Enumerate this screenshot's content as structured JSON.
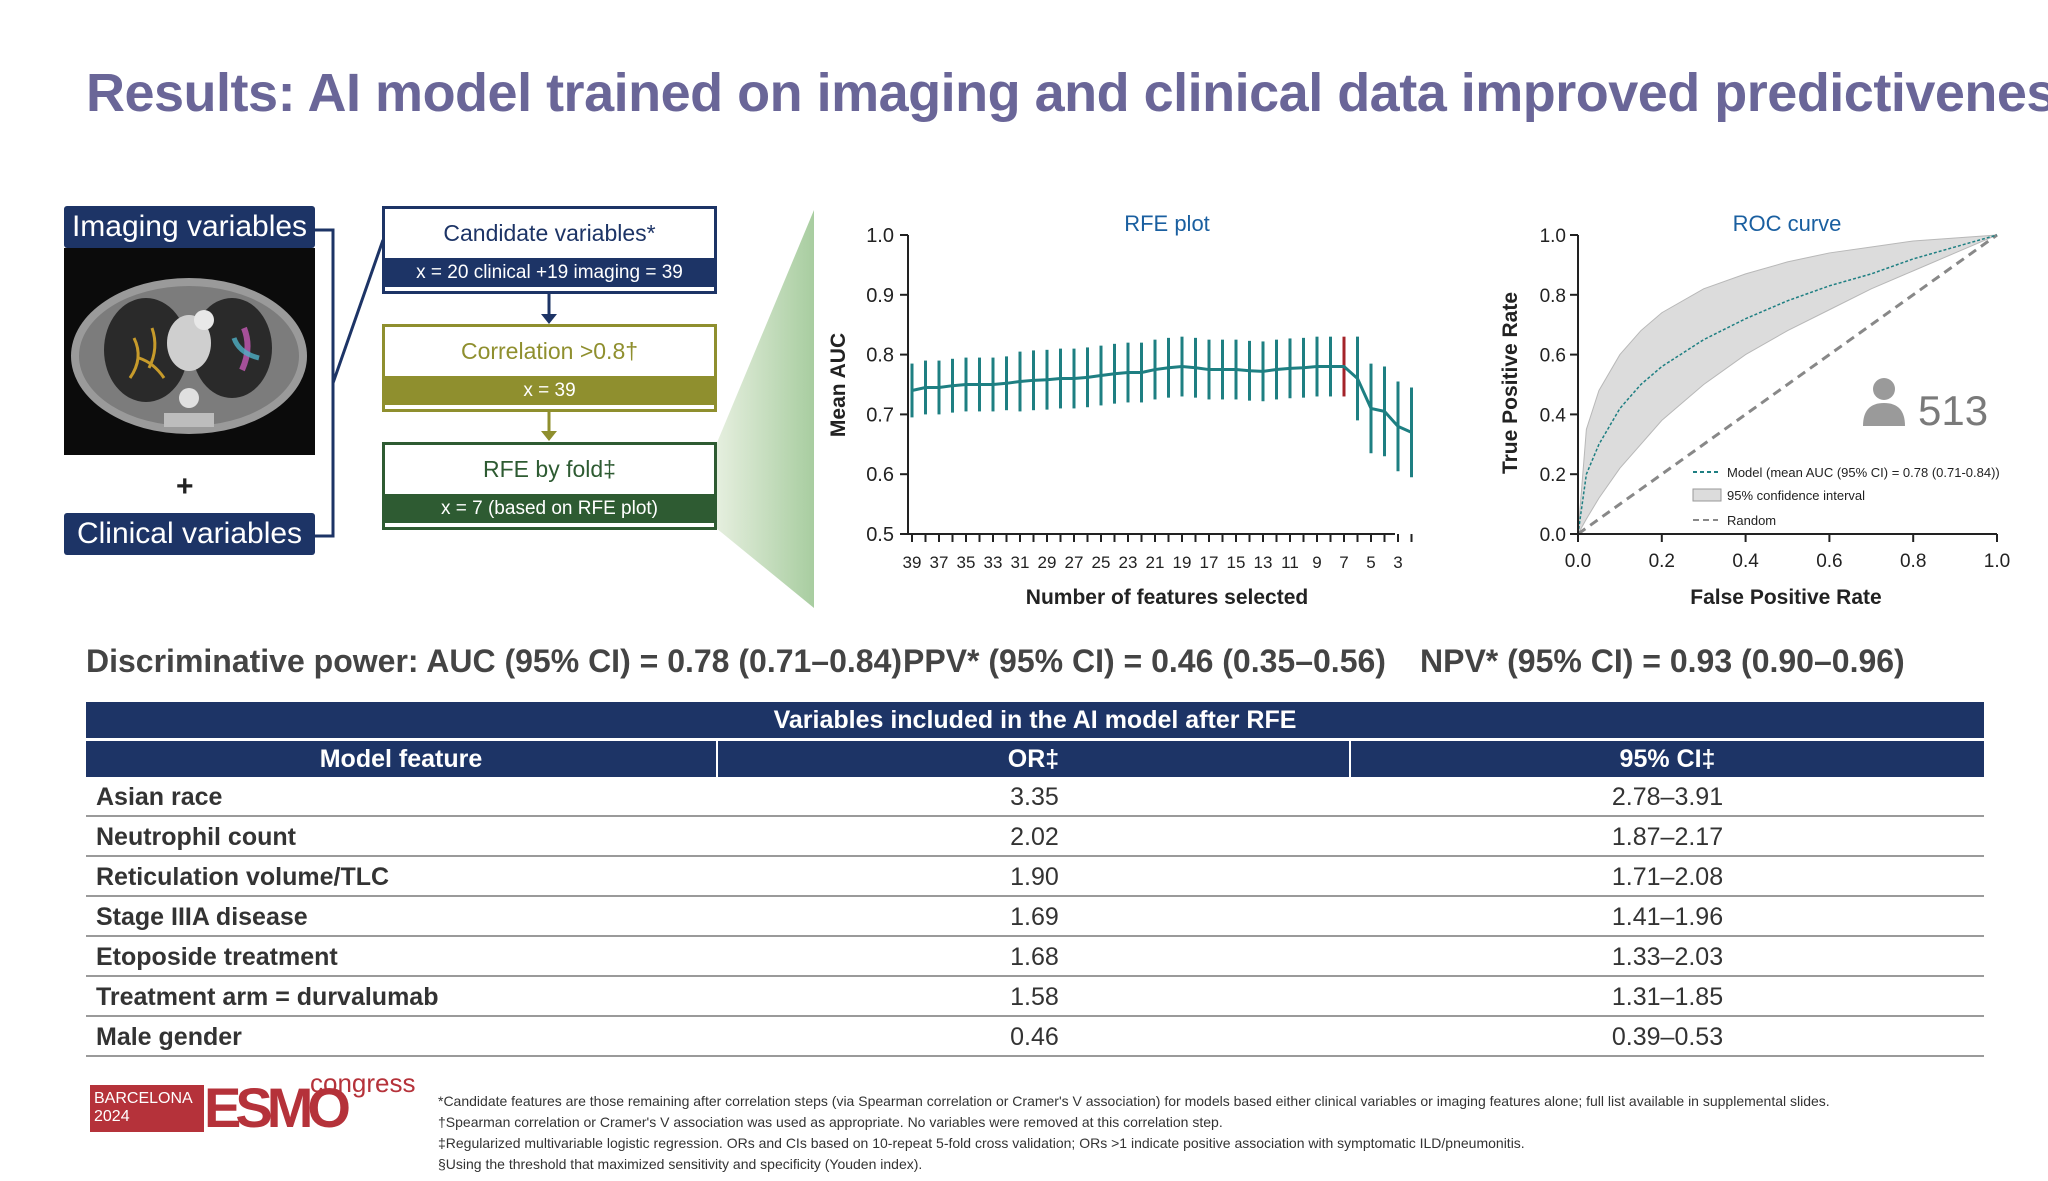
{
  "title": "Results: AI model trained on imaging and clinical data improved predictiveness",
  "flow": {
    "imaging_label": "Imaging variables",
    "clinical_label": "Clinical variables",
    "plus": "+",
    "boxes": [
      {
        "top": "Candidate variables*",
        "bottom": "x = 20 clinical +19 imaging = 39",
        "color": "#1d3466"
      },
      {
        "top": "Correlation >0.8†",
        "bottom": "x = 39",
        "color": "#8f8f2e"
      },
      {
        "top": "RFE by fold‡",
        "bottom": "x = 7 (based on RFE plot)",
        "color": "#2e5b32"
      }
    ]
  },
  "rfe_chart": {
    "title": "RFE plot",
    "xlabel": "Number of features selected",
    "ylabel": "Mean AUC",
    "y_ticks": [
      "0.5",
      "0.6",
      "0.7",
      "0.8",
      "0.9",
      "1.0"
    ],
    "x_ticks": [
      "39",
      "37",
      "35",
      "33",
      "31",
      "29",
      "27",
      "25",
      "23",
      "21",
      "19",
      "17",
      "15",
      "13",
      "11",
      "9",
      "7",
      "5",
      "3"
    ]
  },
  "roc_chart": {
    "title": "ROC curve",
    "xlabel": "False Positive Rate",
    "ylabel": "True Positive Rate",
    "ticks": [
      "0.0",
      "0.2",
      "0.4",
      "0.6",
      "0.8",
      "1.0"
    ],
    "count": "513",
    "legend": [
      "Model (mean AUC (95% CI) = 0.78 (0.71-0.84))",
      "95% confidence interval",
      "Random"
    ]
  },
  "metrics": {
    "auc": "Discriminative power: AUC (95% CI) = 0.78 (0.71–0.84)",
    "ppv": "PPV* (95% CI) = 0.46 (0.35–0.56)",
    "npv": "NPV* (95% CI) = 0.93 (0.90–0.96)"
  },
  "table": {
    "title": "Variables included in the AI model after RFE",
    "headers": [
      "Model feature",
      "OR‡",
      "95% CI‡"
    ],
    "rows": [
      [
        "Asian race",
        "3.35",
        "2.78–3.91"
      ],
      [
        "Neutrophil count",
        "2.02",
        "1.87–2.17"
      ],
      [
        "Reticulation volume/TLC",
        "1.90",
        "1.71–2.08"
      ],
      [
        "Stage IIIA disease",
        "1.69",
        "1.41–1.96"
      ],
      [
        "Etoposide treatment",
        "1.68",
        "1.33–2.03"
      ],
      [
        "Treatment arm = durvalumab",
        "1.58",
        "1.31–1.85"
      ],
      [
        "Male gender",
        "0.46",
        "0.39–0.53"
      ]
    ]
  },
  "logo": {
    "barcelona": "BARCELONA",
    "year": "2024",
    "esmo": "ESMO",
    "congress": "congress"
  },
  "footnotes": [
    "*Candidate features are those remaining after correlation steps (via Spearman correlation or Cramer's V association) for models based either clinical variables or imaging features alone; full list available in supplemental slides.",
    "†Spearman correlation or Cramer's V association was used as appropriate. No variables were removed at this correlation step.",
    "‡Regularized multivariable logistic regression. ORs and CIs based on 10-repeat 5-fold cross validation; ORs >1 indicate positive association with symptomatic ILD/pneumonitis.",
    "§Using the threshold that maximized sensitivity and specificity (Youden index)."
  ],
  "chart_data": [
    {
      "type": "line",
      "title": "RFE plot",
      "xlabel": "Number of features selected",
      "ylabel": "Mean AUC",
      "ylim": [
        0.5,
        1.0
      ],
      "x": [
        39,
        38,
        37,
        36,
        35,
        34,
        33,
        32,
        31,
        30,
        29,
        28,
        27,
        26,
        25,
        24,
        23,
        22,
        21,
        20,
        19,
        18,
        17,
        16,
        15,
        14,
        13,
        12,
        11,
        10,
        9,
        8,
        7,
        6,
        5,
        4,
        3,
        2
      ],
      "y": [
        0.74,
        0.745,
        0.745,
        0.748,
        0.75,
        0.75,
        0.75,
        0.752,
        0.755,
        0.757,
        0.758,
        0.76,
        0.76,
        0.762,
        0.765,
        0.768,
        0.77,
        0.77,
        0.775,
        0.778,
        0.78,
        0.778,
        0.775,
        0.775,
        0.775,
        0.773,
        0.772,
        0.775,
        0.777,
        0.778,
        0.78,
        0.78,
        0.78,
        0.76,
        0.71,
        0.705,
        0.68,
        0.67
      ],
      "err": [
        0.045,
        0.045,
        0.045,
        0.045,
        0.045,
        0.045,
        0.045,
        0.045,
        0.05,
        0.05,
        0.05,
        0.05,
        0.05,
        0.05,
        0.05,
        0.05,
        0.05,
        0.05,
        0.05,
        0.05,
        0.05,
        0.05,
        0.05,
        0.05,
        0.05,
        0.05,
        0.05,
        0.05,
        0.05,
        0.05,
        0.05,
        0.05,
        0.05,
        0.07,
        0.075,
        0.075,
        0.075,
        0.075
      ],
      "highlight_x": 7,
      "highlight_color": "#a4232a",
      "line_color": "#1e7f82"
    },
    {
      "type": "line",
      "title": "ROC curve",
      "xlabel": "False Positive Rate",
      "ylabel": "True Positive Rate",
      "xlim": [
        0,
        1
      ],
      "ylim": [
        0,
        1
      ],
      "series": [
        {
          "name": "Model (mean AUC (95% CI) = 0.78 (0.71-0.84))",
          "x": [
            0,
            0.02,
            0.05,
            0.1,
            0.15,
            0.2,
            0.3,
            0.4,
            0.5,
            0.6,
            0.7,
            0.8,
            0.9,
            1.0
          ],
          "y": [
            0,
            0.2,
            0.3,
            0.42,
            0.5,
            0.56,
            0.65,
            0.72,
            0.78,
            0.83,
            0.87,
            0.92,
            0.96,
            1.0
          ],
          "lower": [
            0,
            0.05,
            0.12,
            0.22,
            0.3,
            0.38,
            0.5,
            0.6,
            0.68,
            0.75,
            0.82,
            0.88,
            0.94,
            1.0
          ],
          "upper": [
            0,
            0.35,
            0.48,
            0.6,
            0.68,
            0.74,
            0.82,
            0.87,
            0.91,
            0.94,
            0.96,
            0.98,
            0.99,
            1.0
          ]
        },
        {
          "name": "Random",
          "x": [
            0,
            1
          ],
          "y": [
            0,
            1
          ]
        }
      ],
      "colors": {
        "model": "#1e7f82",
        "band": "#dcdcdc",
        "random": "#888888"
      }
    }
  ]
}
